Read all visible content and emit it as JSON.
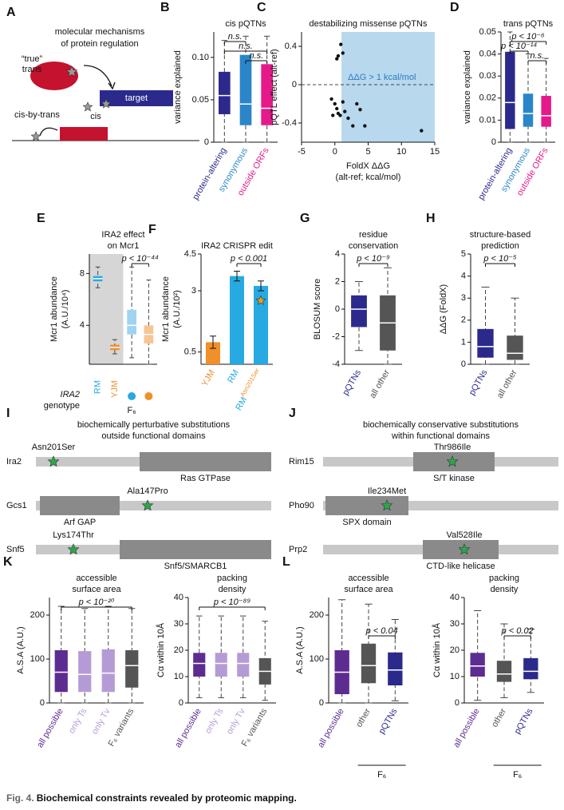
{
  "a": {
    "letter": "A",
    "title": [
      "molecular mechanisms",
      "of protein regulation"
    ],
    "true_label": "“true”",
    "trans_label": "trans",
    "target_label": "target",
    "cis_label": "cis",
    "cis_by_trans_label": "cis-by-trans"
  },
  "b": {
    "type": "box",
    "letter": "B",
    "title": [
      "cis pQTNs"
    ],
    "ylabel": [
      "variance explained"
    ],
    "ylim": [
      0,
      0.13
    ],
    "yticks": [
      0,
      {
        "value": 0.05,
        "label": "0.05"
      },
      {
        "value": 0.1,
        "label": "0.10"
      }
    ],
    "categories": [
      "protein-altering",
      "synonymous",
      "outside ORFs"
    ],
    "colors": [
      "#2b2a8c",
      "#2a86c9",
      "#e6198a"
    ],
    "boxes": [
      [
        0,
        0.033,
        0.055,
        0.083,
        0.12
      ],
      [
        0,
        0.02,
        0.045,
        0.103,
        0.125
      ],
      [
        0,
        0.02,
        0.04,
        0.092,
        0.125
      ]
    ],
    "annotations": [
      "n.s.",
      "n.s.",
      "n.s."
    ]
  },
  "c": {
    "type": "scatter",
    "letter": "C",
    "title": [
      "destabilizing missense pQTNs"
    ],
    "ylabel": [
      "pQTL effect (alt-ref)"
    ],
    "xlabel": [
      "FoldX ΔΔG",
      "(alt-ref; kcal/mol)"
    ],
    "xlim": [
      -5,
      15
    ],
    "xticks": [
      -5,
      0,
      5,
      10,
      15
    ],
    "ylim": [
      -0.6,
      0.55
    ],
    "yticks": [
      -0.4,
      0,
      0.4
    ],
    "threshold": 1,
    "threshold_label": "ΔΔG > 1 kcal/mol",
    "reference_y": 0,
    "points": [
      [
        0.5,
        0.3
      ],
      [
        0.9,
        0.42
      ],
      [
        1.2,
        0.33
      ],
      [
        0.3,
        0.27
      ],
      [
        -0.5,
        -0.15
      ],
      [
        0,
        -0.2
      ],
      [
        0.3,
        -0.25
      ],
      [
        0.5,
        -0.3
      ],
      [
        -0.3,
        -0.32
      ],
      [
        0.8,
        -0.32
      ],
      [
        1.5,
        -0.28
      ],
      [
        2,
        -0.35
      ],
      [
        2.7,
        -0.43
      ],
      [
        3.3,
        -0.2
      ],
      [
        3.8,
        -0.26
      ],
      [
        4.5,
        -0.43
      ],
      [
        13,
        -0.48
      ],
      [
        1.2,
        -0.18
      ]
    ]
  },
  "d": {
    "type": "box",
    "letter": "D",
    "title": [
      "trans pQTNs"
    ],
    "ylabel": [
      "variance explained"
    ],
    "ylim": [
      0,
      0.05
    ],
    "yticks": [
      0,
      0.01,
      0.02,
      0.03,
      0.04,
      0.05
    ],
    "categories": [
      "protein-altering",
      "synonymous",
      "outside ORFs"
    ],
    "colors": [
      "#2b2a8c",
      "#2a86c9",
      "#e6198a"
    ],
    "boxes": [
      [
        0,
        0.006,
        0.018,
        0.041,
        0.05
      ],
      [
        0,
        0.007,
        0.013,
        0.022,
        0.04
      ],
      [
        0,
        0.007,
        0.012,
        0.021,
        0.038
      ]
    ],
    "annotations": [
      "p < 10⁻⁶",
      "p < 10⁻¹⁴",
      "n.s."
    ]
  },
  "e": {
    "type": "box",
    "letter": "E",
    "title": [
      "IRA2 effect",
      "on Mcr1"
    ],
    "ylabel": [
      "Mcr1 abundance",
      "(A.U./10⁴)"
    ],
    "ylim": [
      1,
      9.5
    ],
    "yticks": [
      4,
      8
    ],
    "colors": [
      "#29a9e0",
      "#f0902a",
      "#9fd3f0",
      "#f7c594"
    ],
    "boxes": [
      [
        6.9,
        7.4,
        7.6,
        7.8,
        8.5
      ],
      [
        1.8,
        2.1,
        2.3,
        2.5,
        2.9
      ],
      [
        1.5,
        3.3,
        4,
        5.2,
        8.5
      ],
      [
        1,
        2.6,
        3.3,
        4,
        7.5
      ]
    ],
    "annotations": [
      "p < 10⁻⁴⁴"
    ],
    "genotype": {
      "label": [
        "IRA2",
        "genotype"
      ],
      "parents": [
        "RM",
        "YJM"
      ],
      "f6": "F₆"
    }
  },
  "f": {
    "type": "bar",
    "letter": "F",
    "title": [
      "IRA2 CRISPR edit"
    ],
    "ylabel": [
      "Mcr1 abundance",
      "(A.U./10²)"
    ],
    "ylim": [
      0,
      4.5
    ],
    "yticks": [
      0.5,
      3,
      4.5
    ],
    "categories": [
      "YJM",
      "RM",
      "RM"
    ],
    "edit_superscript": "Asn201Ser",
    "colors": [
      "#f0902a",
      "#27aae1",
      "#27aae1"
    ],
    "values": [
      0.9,
      3.6,
      3.2
    ],
    "errors": [
      0.25,
      0.2,
      0.2
    ],
    "star": 2.6,
    "annotations": [
      "p < 0.001"
    ]
  },
  "g": {
    "type": "box",
    "letter": "G",
    "title": [
      "residue",
      "conservation"
    ],
    "ylabel": [
      "BLOSUM score"
    ],
    "ylim": [
      -4,
      4
    ],
    "yticks": [
      -4,
      -2,
      0,
      2,
      4
    ],
    "categories": [
      "pQTNs",
      "all other"
    ],
    "colors": [
      "#2b2a8c",
      "#555555"
    ],
    "boxes": [
      [
        -3,
        -1.3,
        0,
        1,
        2
      ],
      [
        -4,
        -3,
        -1,
        1,
        3
      ]
    ],
    "annotations": [
      "p < 10⁻⁹"
    ]
  },
  "h": {
    "type": "box",
    "letter": "H",
    "title": [
      "structure-based",
      "prediction"
    ],
    "ylabel": [
      "ΔΔG (FoldX)"
    ],
    "ylim": [
      0,
      5
    ],
    "yticks": [
      0,
      1,
      2,
      3,
      4,
      5
    ],
    "categories": [
      "pQTNs",
      "all other"
    ],
    "colors": [
      "#2b2a8c",
      "#555555"
    ],
    "boxes": [
      [
        0,
        0.3,
        0.8,
        1.6,
        3.5
      ],
      [
        0,
        0.2,
        0.5,
        1.3,
        3
      ]
    ],
    "annotations": [
      "p < 10⁻⁵"
    ]
  },
  "i": {
    "letter": "I",
    "title": [
      "biochemically perturbative substitutions",
      "outside functional domains"
    ],
    "proteins": [
      {
        "name": "Ira2",
        "domain": "Ras GTPase",
        "mutation": "Asn201Ser"
      },
      {
        "name": "Gcs1",
        "domain": "Arf GAP",
        "mutation": "Ala147Pro"
      },
      {
        "name": "Snf5",
        "domain": "Snf5/SMARCB1",
        "mutation": "Lys174Thr"
      }
    ]
  },
  "j": {
    "letter": "J",
    "title": [
      "biochemically conservative substitutions",
      "within functional domains"
    ],
    "proteins": [
      {
        "name": "Rim15",
        "domain": "S/T kinase",
        "mutation": "Thr986Ile"
      },
      {
        "name": "Pho90",
        "domain": "SPX domain",
        "mutation": "Ile234Met"
      },
      {
        "name": "Prp2",
        "domain": "CTD-like helicase",
        "mutation": "Val528Ile"
      }
    ]
  },
  "k1": {
    "type": "box",
    "letter": "K",
    "title": [
      "accessible",
      "surface area"
    ],
    "ylabel": [
      "A.S.A (A.U.)"
    ],
    "ylim": [
      0,
      240
    ],
    "yticks": [
      0,
      100,
      200
    ],
    "categories": [
      "all possible",
      "only Ts",
      "only Tv",
      "F₆ variants"
    ],
    "colors": [
      "#5d2c91",
      "#b59bd6",
      "#b59bd6",
      "#555555"
    ],
    "boxes": [
      [
        0,
        25,
        70,
        120,
        220
      ],
      [
        0,
        25,
        65,
        118,
        215
      ],
      [
        0,
        25,
        68,
        122,
        220
      ],
      [
        0,
        35,
        85,
        120,
        215
      ]
    ],
    "annotations": [
      "p < 10⁻²⁰"
    ]
  },
  "k2": {
    "type": "box",
    "title": [
      "packing",
      "density"
    ],
    "ylabel": [
      "Cα within 10Å"
    ],
    "ylim": [
      0,
      40
    ],
    "yticks": [
      0,
      10,
      20,
      30,
      40
    ],
    "categories": [
      "all possible",
      "only Ts",
      "only Tv",
      "F₆ variants"
    ],
    "colors": [
      "#5d2c91",
      "#b59bd6",
      "#b59bd6",
      "#555555"
    ],
    "boxes": [
      [
        2,
        10,
        15,
        19,
        33
      ],
      [
        2,
        10,
        15,
        19,
        33
      ],
      [
        2,
        10,
        15,
        19,
        33
      ],
      [
        1,
        7,
        12,
        17,
        31
      ]
    ],
    "annotations": [
      "p < 10⁻⁸⁹"
    ]
  },
  "l1": {
    "type": "box",
    "letter": "L",
    "title": [
      "accessible",
      "surface area"
    ],
    "ylabel": [
      "A.S.A (A.U.)"
    ],
    "ylim": [
      0,
      240
    ],
    "yticks": [
      0,
      100,
      200
    ],
    "categories": [
      "all possible",
      "other",
      "pQTNs"
    ],
    "colors": [
      "#5d2c91",
      "#555555",
      "#2b2a8c"
    ],
    "group_label": "F₆",
    "boxes": [
      [
        0,
        20,
        70,
        120,
        235
      ],
      [
        0,
        45,
        85,
        135,
        225
      ],
      [
        5,
        40,
        75,
        115,
        190
      ]
    ],
    "annotations": [
      "p < 0.04"
    ]
  },
  "l2": {
    "type": "box",
    "title": [
      "packing",
      "density"
    ],
    "ylabel": [
      "Cα within 10Å"
    ],
    "ylim": [
      0,
      40
    ],
    "yticks": [
      0,
      10,
      20,
      30,
      40
    ],
    "categories": [
      "all possible",
      "other",
      "pQTNs"
    ],
    "colors": [
      "#5d2c91",
      "#555555",
      "#2b2a8c"
    ],
    "group_label": "F₆",
    "boxes": [
      [
        1,
        10,
        14,
        19,
        35
      ],
      [
        2,
        8,
        11,
        16,
        30
      ],
      [
        4,
        9,
        12,
        17,
        28
      ]
    ],
    "annotations": [
      "p < 0.02"
    ]
  },
  "caption": {
    "label": "Fig. 4.",
    "text": "Biochemical constraints revealed by proteomic mapping."
  }
}
